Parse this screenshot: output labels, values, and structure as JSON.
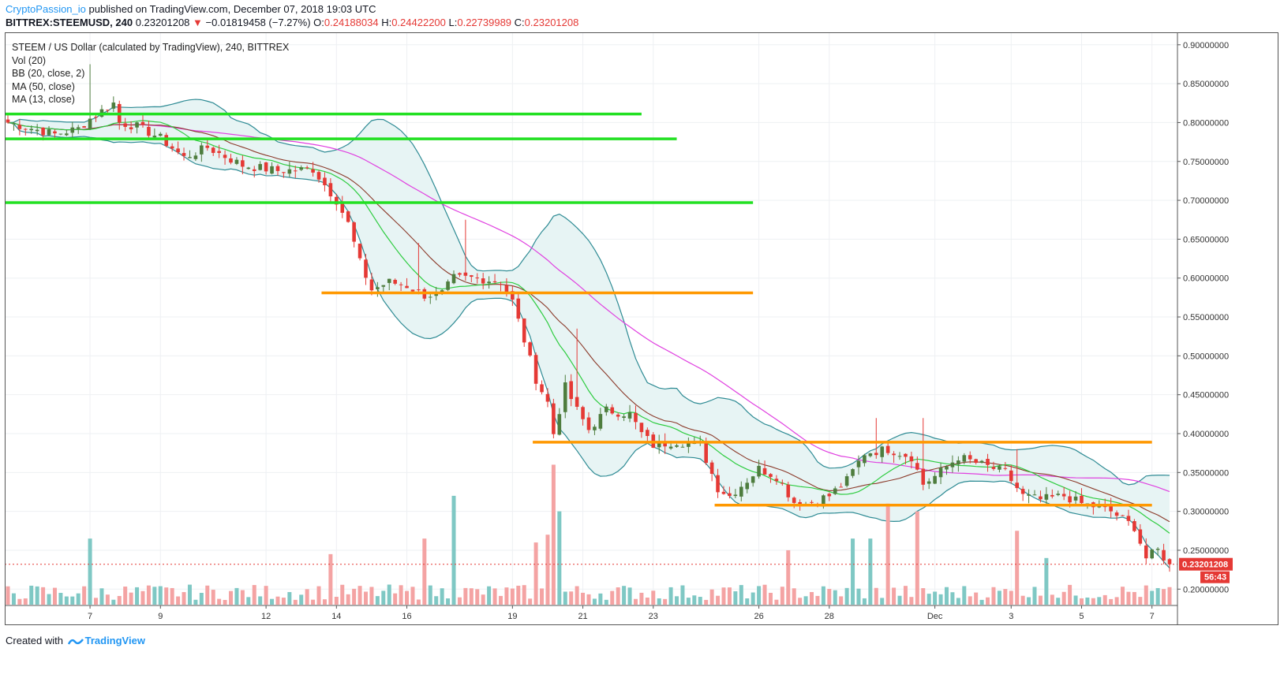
{
  "header": {
    "author": "CryptoPassion_io",
    "published_text": "published on TradingView.com, December 07, 2018 19:03 UTC",
    "symbol_line": "BITTREX:STEEMUSD, 240",
    "last": "0.23201208",
    "down_arrow": "▼",
    "change": "−0.01819458 (−7.27%)",
    "o_label": "O:",
    "o_value": "0.24188034",
    "h_label": "H:",
    "h_value": "0.24422200",
    "l_label": "L:",
    "l_value": "0.22739989",
    "c_label": "C:",
    "c_value": "0.23201208"
  },
  "legend": {
    "title": "STEEM / US Dollar (calculated by TradingView), 240, BITTREX",
    "vol": "Vol (20)",
    "bb": "BB (20, close, 2)",
    "ma50": "MA (50, close)",
    "ma13": "MA (13, close)"
  },
  "footer": {
    "created_with": "Created with",
    "brand": "TradingView"
  },
  "colors": {
    "up": "#4e7d3e",
    "down": "#e53935",
    "vol_up": "#7fc8c4",
    "vol_down": "#f4a3a3",
    "bb": "#2e8b94",
    "bb_fill": "#e7f4f4",
    "ma50": "#e040e0",
    "ma13_green": "#2ecc40",
    "ma20_brown": "#8b3a2a",
    "support_green": "#22e022",
    "support_orange": "#ff9800",
    "price_tag": "#e53935"
  },
  "chart_data": {
    "type": "candlestick",
    "ylim": [
      0.18,
      0.915
    ],
    "y_ticks": [
      "0.90000000",
      "0.85000000",
      "0.80000000",
      "0.75000000",
      "0.70000000",
      "0.65000000",
      "0.60000000",
      "0.55000000",
      "0.50000000",
      "0.45000000",
      "0.40000000",
      "0.35000000",
      "0.30000000",
      "0.25000000",
      "0.20000000"
    ],
    "x_ticks": [
      {
        "label": "7",
        "bar": 14
      },
      {
        "label": "9",
        "bar": 26
      },
      {
        "label": "12",
        "bar": 44
      },
      {
        "label": "14",
        "bar": 56
      },
      {
        "label": "16",
        "bar": 68
      },
      {
        "label": "19",
        "bar": 86
      },
      {
        "label": "21",
        "bar": 98
      },
      {
        "label": "23",
        "bar": 110
      },
      {
        "label": "26",
        "bar": 128
      },
      {
        "label": "28",
        "bar": 140
      },
      {
        "label": "Dec",
        "bar": 158
      },
      {
        "label": "3",
        "bar": 171
      },
      {
        "label": "5",
        "bar": 183
      },
      {
        "label": "7",
        "bar": 195
      }
    ],
    "last_price_label": "0.23201208",
    "countdown_label": "56:43",
    "last_price": 0.23201208,
    "horizontal_levels": [
      {
        "price": 0.811,
        "from_bar": 0,
        "to_bar": 108,
        "color": "green"
      },
      {
        "price": 0.779,
        "from_bar": 0,
        "to_bar": 114,
        "color": "green"
      },
      {
        "price": 0.697,
        "from_bar": 0,
        "to_bar": 127,
        "color": "green"
      },
      {
        "price": 0.581,
        "from_bar": 54,
        "to_bar": 127,
        "color": "orange"
      },
      {
        "price": 0.389,
        "from_bar": 90,
        "to_bar": 195,
        "color": "orange"
      },
      {
        "price": 0.308,
        "from_bar": 121,
        "to_bar": 195,
        "color": "orange"
      }
    ],
    "keypoints": [
      [
        0,
        0.8
      ],
      [
        8,
        0.785
      ],
      [
        12,
        0.792
      ],
      [
        14,
        0.805
      ],
      [
        16,
        0.815
      ],
      [
        18,
        0.825
      ],
      [
        19,
        0.8
      ],
      [
        22,
        0.795
      ],
      [
        26,
        0.78
      ],
      [
        30,
        0.755
      ],
      [
        34,
        0.768
      ],
      [
        40,
        0.745
      ],
      [
        46,
        0.738
      ],
      [
        52,
        0.74
      ],
      [
        56,
        0.7
      ],
      [
        58,
        0.67
      ],
      [
        60,
        0.62
      ],
      [
        62,
        0.585
      ],
      [
        65,
        0.595
      ],
      [
        68,
        0.59
      ],
      [
        71,
        0.578
      ],
      [
        74,
        0.58
      ],
      [
        76,
        0.6
      ],
      [
        80,
        0.6
      ],
      [
        84,
        0.595
      ],
      [
        86,
        0.57
      ],
      [
        88,
        0.52
      ],
      [
        90,
        0.47
      ],
      [
        92,
        0.44
      ],
      [
        93,
        0.4
      ],
      [
        95,
        0.46
      ],
      [
        97,
        0.43
      ],
      [
        99,
        0.405
      ],
      [
        102,
        0.43
      ],
      [
        106,
        0.425
      ],
      [
        108,
        0.4
      ],
      [
        110,
        0.385
      ],
      [
        114,
        0.39
      ],
      [
        118,
        0.385
      ],
      [
        121,
        0.33
      ],
      [
        123,
        0.32
      ],
      [
        126,
        0.34
      ],
      [
        128,
        0.355
      ],
      [
        131,
        0.345
      ],
      [
        134,
        0.312
      ],
      [
        136,
        0.31
      ],
      [
        140,
        0.32
      ],
      [
        143,
        0.34
      ],
      [
        146,
        0.375
      ],
      [
        150,
        0.38
      ],
      [
        154,
        0.37
      ],
      [
        156,
        0.335
      ],
      [
        158,
        0.345
      ],
      [
        162,
        0.37
      ],
      [
        166,
        0.36
      ],
      [
        170,
        0.35
      ],
      [
        173,
        0.32
      ],
      [
        176,
        0.315
      ],
      [
        180,
        0.32
      ],
      [
        183,
        0.31
      ],
      [
        186,
        0.305
      ],
      [
        188,
        0.3
      ],
      [
        190,
        0.29
      ],
      [
        192,
        0.28
      ],
      [
        194,
        0.24
      ],
      [
        196,
        0.25
      ],
      [
        198,
        0.232
      ]
    ],
    "volume_spikes": [
      [
        14,
        0.265
      ],
      [
        71,
        0.265
      ],
      [
        76,
        0.32
      ],
      [
        93,
        0.36
      ],
      [
        94,
        0.3
      ],
      [
        90,
        0.26
      ],
      [
        92,
        0.27
      ],
      [
        144,
        0.265
      ],
      [
        150,
        0.31
      ],
      [
        155,
        0.3
      ],
      [
        172,
        0.275
      ],
      [
        177,
        0.24
      ],
      [
        55,
        0.245
      ],
      [
        133,
        0.25
      ],
      [
        147,
        0.265
      ]
    ],
    "bars": 199
  }
}
